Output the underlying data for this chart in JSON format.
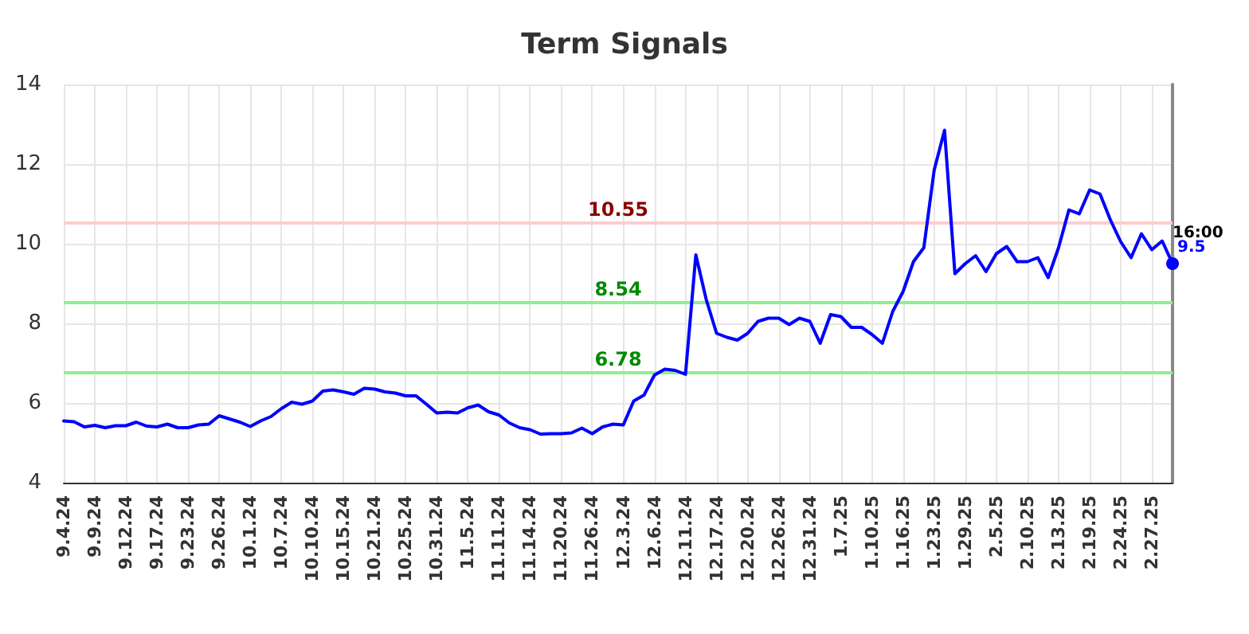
{
  "chart_data": {
    "type": "line",
    "title": "Term Signals",
    "categories": [
      "9.4.24",
      null,
      null,
      "9.9.24",
      null,
      null,
      "9.12.24",
      null,
      null,
      "9.17.24",
      null,
      null,
      "9.23.24",
      null,
      null,
      "9.26.24",
      null,
      null,
      "10.1.24",
      null,
      null,
      "10.7.24",
      null,
      null,
      "10.10.24",
      null,
      null,
      "10.15.24",
      null,
      null,
      "10.21.24",
      null,
      null,
      "10.25.24",
      null,
      null,
      "10.31.24",
      null,
      null,
      "11.5.24",
      null,
      null,
      "11.11.24",
      null,
      null,
      "11.14.24",
      null,
      null,
      "11.20.24",
      null,
      null,
      "11.26.24",
      null,
      null,
      "12.3.24",
      null,
      null,
      "12.6.24",
      null,
      null,
      "12.11.24",
      null,
      null,
      "12.17.24",
      null,
      null,
      "12.20.24",
      null,
      null,
      "12.26.24",
      null,
      null,
      "12.31.24",
      null,
      null,
      "1.7.25",
      null,
      null,
      "1.10.25",
      null,
      null,
      "1.16.25",
      null,
      null,
      "1.23.25",
      null,
      null,
      "1.29.25",
      null,
      null,
      "2.5.25",
      null,
      null,
      "2.10.25",
      null,
      null,
      "2.13.25",
      null,
      null,
      "2.19.25",
      null,
      null,
      "2.24.25",
      null,
      null,
      "2.27.25",
      null,
      null
    ],
    "series": [
      {
        "color": "#0000ff",
        "values": [
          5.55,
          5.53,
          5.4,
          5.44,
          5.38,
          5.43,
          5.43,
          5.52,
          5.42,
          5.4,
          5.47,
          5.38,
          5.38,
          5.45,
          5.47,
          5.68,
          5.6,
          5.52,
          5.41,
          5.55,
          5.66,
          5.86,
          6.02,
          5.97,
          6.05,
          6.3,
          6.33,
          6.28,
          6.22,
          6.37,
          6.35,
          6.28,
          6.25,
          6.18,
          6.18,
          5.97,
          5.75,
          5.77,
          5.75,
          5.88,
          5.95,
          5.78,
          5.7,
          5.5,
          5.38,
          5.33,
          5.22,
          5.23,
          5.23,
          5.25,
          5.37,
          5.23,
          5.4,
          5.47,
          5.45,
          6.05,
          6.2,
          6.7,
          6.85,
          6.82,
          6.72,
          9.72,
          8.6,
          7.75,
          7.65,
          7.58,
          7.75,
          8.05,
          8.13,
          8.13,
          7.97,
          8.13,
          8.05,
          7.5,
          8.22,
          8.17,
          7.9,
          7.9,
          7.72,
          7.5,
          8.3,
          8.8,
          9.55,
          9.9,
          11.85,
          12.85,
          9.25,
          9.5,
          9.7,
          9.3,
          9.75,
          9.93,
          9.55,
          9.55,
          9.65,
          9.15,
          9.9,
          10.85,
          10.75,
          11.35,
          11.25,
          10.6,
          10.05,
          9.65,
          10.25,
          9.85,
          10.07,
          9.5
        ],
        "value_labels": [
          null,
          null,
          null,
          null,
          null,
          null,
          null,
          null,
          null,
          null,
          null,
          null,
          null,
          null,
          null,
          null,
          null,
          null,
          null,
          null,
          null,
          null,
          null,
          null,
          null,
          null,
          null,
          null,
          null,
          null,
          null,
          null,
          null,
          null,
          null,
          null,
          null,
          null,
          null,
          null,
          null,
          null,
          null,
          null,
          null,
          null,
          null,
          null,
          null,
          null,
          null,
          null,
          null,
          null,
          null,
          null,
          null,
          null,
          null,
          null,
          null,
          null,
          null,
          null,
          null,
          null,
          null,
          null,
          null,
          null,
          null,
          null,
          null,
          null,
          null,
          null,
          null,
          null,
          null,
          null,
          null,
          null,
          null,
          null,
          null,
          null,
          null,
          null,
          null,
          null,
          null,
          null,
          null,
          null,
          null,
          null,
          null,
          null,
          null,
          null,
          null,
          null,
          null,
          null,
          null,
          null,
          null,
          "9.5"
        ]
      }
    ],
    "annotations": [
      "16:00"
    ],
    "ref_lines": [
      {
        "axis": "y",
        "value": 10.55,
        "label": "10.55",
        "color": "#ffcccc"
      },
      {
        "axis": "y",
        "value": 8.54,
        "label": "8.54",
        "color": "#90ee90"
      },
      {
        "axis": "y",
        "value": 6.78,
        "label": "6.78",
        "color": "#90ee90"
      }
    ],
    "ylim": [
      4,
      14
    ],
    "yticks": [
      4,
      6,
      8,
      10,
      12,
      14
    ],
    "grid": true,
    "marker": "none",
    "line_style": "solid"
  }
}
